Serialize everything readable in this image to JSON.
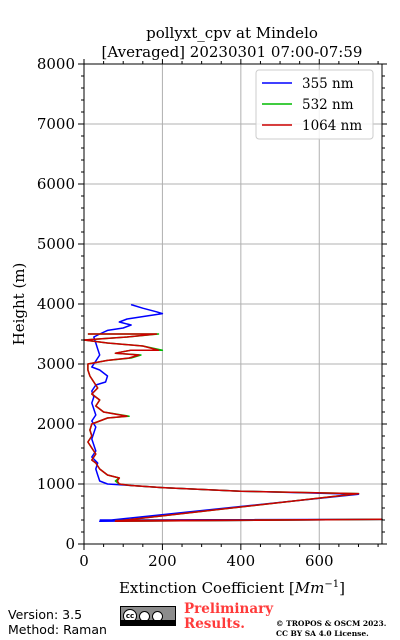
{
  "chart_data": {
    "type": "line",
    "title_line1": "pollyxt_cpv at Mindelo",
    "title_line2": "[Averaged] 20230301 07:00-07:59",
    "xlabel": "Extinction Coefficient [",
    "xlabel_unit": "Mm",
    "xlabel_exp": "−1",
    "xlabel_end": "]",
    "ylabel": "Height (m)",
    "xlim": [
      0,
      760
    ],
    "ylim": [
      0,
      8000
    ],
    "xticks": [
      0,
      200,
      400,
      600
    ],
    "xtick_labels": [
      "0",
      "200",
      "400",
      "600"
    ],
    "yticks": [
      0,
      1000,
      2000,
      3000,
      4000,
      5000,
      6000,
      7000,
      8000
    ],
    "ytick_labels": [
      "0",
      "1000",
      "2000",
      "3000",
      "4000",
      "5000",
      "6000",
      "7000",
      "8000"
    ],
    "grid": true,
    "legend_position": "top-right",
    "series": [
      {
        "name": "355 nm",
        "color": "#0000ff",
        "points": [
          [
            40,
            400
          ],
          [
            760,
            410
          ],
          [
            40,
            380
          ],
          [
            700,
            830
          ],
          [
            400,
            880
          ],
          [
            200,
            940
          ],
          [
            120,
            975
          ],
          [
            60,
            1000
          ],
          [
            40,
            1050
          ],
          [
            35,
            1150
          ],
          [
            30,
            1250
          ],
          [
            35,
            1350
          ],
          [
            20,
            1450
          ],
          [
            30,
            1550
          ],
          [
            25,
            1650
          ],
          [
            20,
            1750
          ],
          [
            25,
            1850
          ],
          [
            30,
            1950
          ],
          [
            20,
            2050
          ],
          [
            30,
            2150
          ],
          [
            25,
            2250
          ],
          [
            20,
            2350
          ],
          [
            25,
            2450
          ],
          [
            20,
            2550
          ],
          [
            30,
            2650
          ],
          [
            55,
            2700
          ],
          [
            60,
            2800
          ],
          [
            40,
            2900
          ],
          [
            20,
            2950
          ],
          [
            30,
            3050
          ],
          [
            40,
            3150
          ],
          [
            35,
            3250
          ],
          [
            30,
            3350
          ],
          [
            25,
            3450
          ],
          [
            40,
            3500
          ],
          [
            60,
            3560
          ],
          [
            100,
            3600
          ],
          [
            120,
            3650
          ],
          [
            90,
            3700
          ],
          [
            110,
            3750
          ],
          [
            160,
            3800
          ],
          [
            200,
            3840
          ],
          [
            185,
            3870
          ],
          [
            150,
            3930
          ],
          [
            120,
            3990
          ]
        ]
      },
      {
        "name": "532 nm",
        "color": "#00bb00",
        "points": [
          [
            80,
            390
          ],
          [
            760,
            410
          ],
          [
            80,
            380
          ],
          [
            700,
            840
          ],
          [
            400,
            880
          ],
          [
            200,
            940
          ],
          [
            120,
            975
          ],
          [
            90,
            1000
          ],
          [
            80,
            1050
          ],
          [
            90,
            1100
          ],
          [
            60,
            1150
          ],
          [
            40,
            1250
          ],
          [
            30,
            1350
          ],
          [
            20,
            1400
          ],
          [
            30,
            1500
          ],
          [
            20,
            1600
          ],
          [
            10,
            1700
          ],
          [
            20,
            1800
          ],
          [
            15,
            1900
          ],
          [
            20,
            2000
          ],
          [
            40,
            2050
          ],
          [
            60,
            2100
          ],
          [
            115,
            2130
          ],
          [
            50,
            2200
          ],
          [
            30,
            2300
          ],
          [
            40,
            2400
          ],
          [
            20,
            2500
          ],
          [
            35,
            2600
          ],
          [
            25,
            2700
          ],
          [
            15,
            2800
          ],
          [
            10,
            2900
          ],
          [
            10,
            3000
          ],
          [
            60,
            3060
          ],
          [
            120,
            3100
          ],
          [
            145,
            3150
          ],
          [
            80,
            3180
          ],
          [
            120,
            3230
          ],
          [
            200,
            3230
          ],
          [
            150,
            3300
          ],
          [
            60,
            3350
          ],
          [
            0,
            3400
          ],
          [
            110,
            3450
          ],
          [
            190,
            3500
          ],
          [
            10,
            3500
          ]
        ]
      },
      {
        "name": "1064 nm",
        "color": "#cc0000",
        "points": [
          [
            80,
            390
          ],
          [
            760,
            410
          ],
          [
            80,
            380
          ],
          [
            700,
            840
          ],
          [
            400,
            880
          ],
          [
            200,
            940
          ],
          [
            120,
            975
          ],
          [
            90,
            1000
          ],
          [
            85,
            1050
          ],
          [
            90,
            1100
          ],
          [
            60,
            1150
          ],
          [
            40,
            1250
          ],
          [
            30,
            1350
          ],
          [
            20,
            1400
          ],
          [
            30,
            1500
          ],
          [
            20,
            1600
          ],
          [
            10,
            1700
          ],
          [
            20,
            1800
          ],
          [
            15,
            1900
          ],
          [
            20,
            2000
          ],
          [
            40,
            2050
          ],
          [
            60,
            2100
          ],
          [
            110,
            2130
          ],
          [
            50,
            2200
          ],
          [
            30,
            2300
          ],
          [
            40,
            2400
          ],
          [
            20,
            2500
          ],
          [
            35,
            2600
          ],
          [
            25,
            2700
          ],
          [
            15,
            2800
          ],
          [
            10,
            2900
          ],
          [
            10,
            3000
          ],
          [
            60,
            3060
          ],
          [
            115,
            3100
          ],
          [
            140,
            3150
          ],
          [
            80,
            3180
          ],
          [
            120,
            3230
          ],
          [
            190,
            3230
          ],
          [
            150,
            3300
          ],
          [
            60,
            3350
          ],
          [
            0,
            3400
          ],
          [
            110,
            3450
          ],
          [
            185,
            3500
          ],
          [
            10,
            3500
          ]
        ]
      }
    ]
  },
  "footer": {
    "version": "Version: 3.5",
    "method": "Method: Raman",
    "license_badge": "cc",
    "preliminary_line1": "Preliminary",
    "preliminary_line2": "Results.",
    "copyright_line1": "© TROPOS & OSCM 2023.",
    "copyright_line2": "CC BY SA 4.0 License."
  }
}
